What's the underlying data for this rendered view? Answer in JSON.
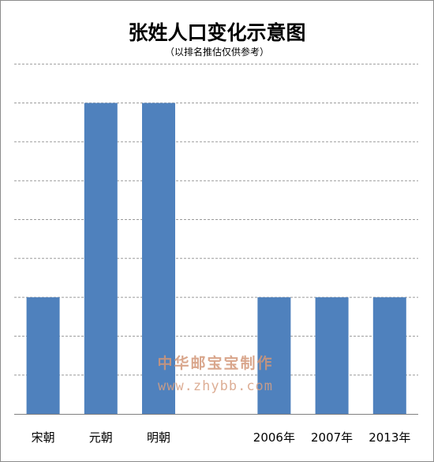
{
  "chart_data": {
    "type": "bar",
    "title": "张姓人口变化示意图",
    "subtitle": "（以排名推估仅供参考）",
    "categories": [
      "宋朝",
      "元朝",
      "明朝",
      "",
      "2006年",
      "2007年",
      "2013年"
    ],
    "values": [
      3,
      8,
      8,
      null,
      3,
      3,
      3
    ],
    "ylim": [
      0,
      9
    ],
    "grid": true,
    "grid_style": "dashed",
    "legend": "none",
    "bar_color": "#4f81bd"
  },
  "watermark": {
    "line1": "中华邮宝宝制作",
    "line2": "www.zhybb.com"
  }
}
